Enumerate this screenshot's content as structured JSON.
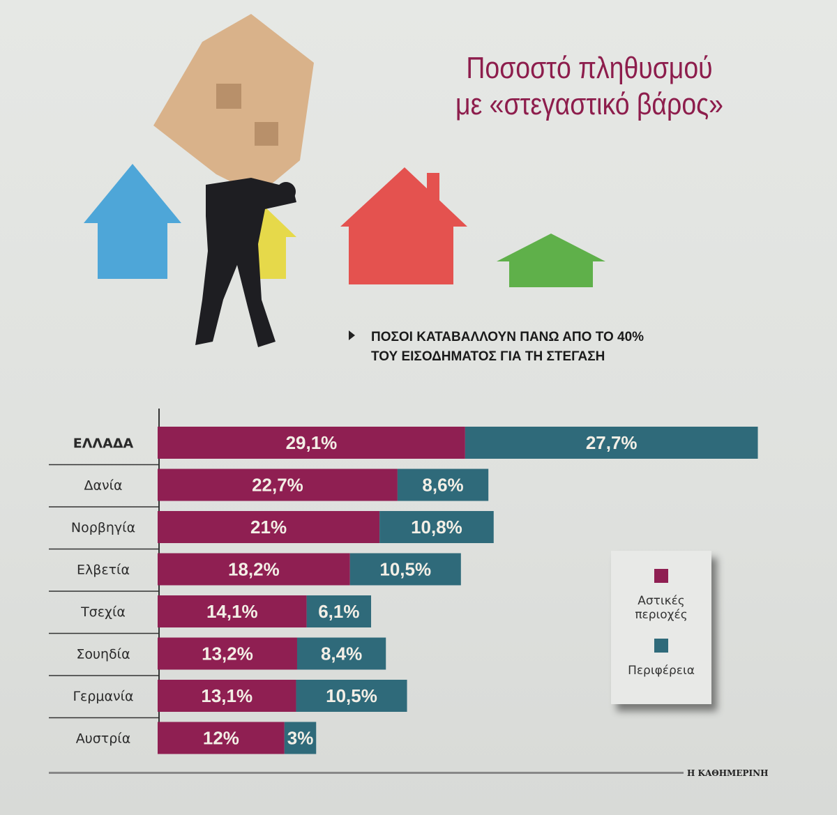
{
  "title": "Ποσοστό πληθυσμού με «στεγαστικό βάρος»",
  "title_lines": [
    "Ποσοστό πληθυσμού",
    "με «στεγαστικό βάρος»"
  ],
  "subtitle_lines": [
    "ΠΟΣΟΙ ΚΑΤΑΒΑΛΛΟΥΝ ΠΑΝΩ ΑΠΟ ΤΟ 40%",
    "ΤΟΥ ΕΙΣΟΔΗΜΑΤΟΣ ΓΙΑ ΤΗ ΣΤΕΓΑΣΗ"
  ],
  "source": "Η ΚΑΘΗΜΕΡΙΝΗ",
  "colors": {
    "urban": "#8f1f52",
    "periphery": "#2f6a7a",
    "title": "#8d1d4c"
  },
  "legend": {
    "urban_line1": "Αστικές",
    "urban_line2": "περιοχές",
    "periphery": "Περιφέρεια"
  },
  "chart_data": {
    "type": "bar",
    "orientation": "horizontal",
    "stacked": true,
    "title": "Ποσοστό πληθυσμού με «στεγαστικό βάρος»",
    "subtitle": "ΠΟΣΟΙ ΚΑΤΑΒΑΛΛΟΥΝ ΠΑΝΩ ΑΠΟ ΤΟ 40% ΤΟΥ ΕΙΣΟΔΗΜΑΤΟΣ ΓΙΑ ΤΗ ΣΤΕΓΑΣΗ",
    "categories": [
      "ΕΛΛΑΔΑ",
      "Δανία",
      "Νορβηγία",
      "Ελβετία",
      "Τσεχία",
      "Σουηδία",
      "Γερμανία",
      "Αυστρία"
    ],
    "series": [
      {
        "name": "Αστικές περιοχές",
        "values": [
          29.1,
          22.7,
          21,
          18.2,
          14.1,
          13.2,
          13.1,
          12
        ],
        "labels": [
          "29,1%",
          "22,7%",
          "21%",
          "18,2%",
          "14,1%",
          "13,2%",
          "13,1%",
          "12%"
        ]
      },
      {
        "name": "Περιφέρεια",
        "values": [
          27.7,
          8.6,
          10.8,
          10.5,
          6.1,
          8.4,
          10.5,
          3
        ],
        "labels": [
          "27,7%",
          "8,6%",
          "10,8%",
          "10,5%",
          "6,1%",
          "8,4%",
          "10,5%",
          "3%"
        ]
      }
    ],
    "legend_position": "right",
    "grid": false
  }
}
